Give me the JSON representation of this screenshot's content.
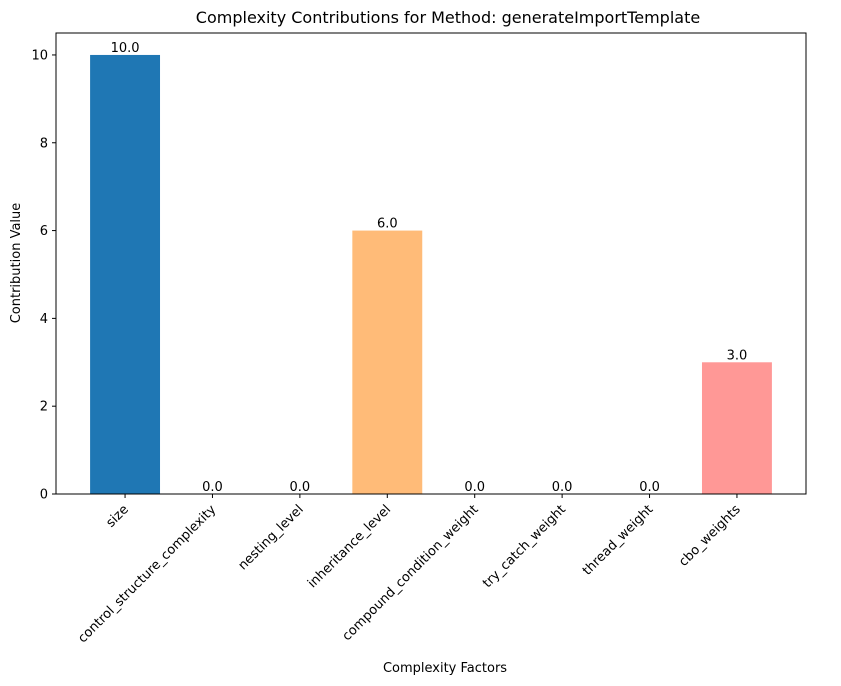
{
  "chart_data": {
    "type": "bar",
    "title": "Complexity Contributions for Method: generateImportTemplate",
    "xlabel": "Complexity Factors",
    "ylabel": "Contribution Value",
    "categories": [
      "size",
      "control_structure_complexity",
      "nesting_level",
      "inheritance_level",
      "compound_condition_weight",
      "try_catch_weight",
      "thread_weight",
      "cbo_weights"
    ],
    "values": [
      10.0,
      0.0,
      0.0,
      6.0,
      0.0,
      0.0,
      0.0,
      3.0
    ],
    "value_labels": [
      "10.0",
      "0.0",
      "0.0",
      "6.0",
      "0.0",
      "0.0",
      "0.0",
      "3.0"
    ],
    "colors": [
      "#1f77b4",
      "#aec7e8",
      "#ff7f0e",
      "#ffbb78",
      "#2ca02c",
      "#98df8a",
      "#d62728",
      "#ff9896"
    ],
    "ylim": [
      0,
      10.5
    ],
    "yticks": [
      0,
      2,
      4,
      6,
      8,
      10
    ],
    "ytick_labels": [
      "0",
      "2",
      "4",
      "6",
      "8",
      "10"
    ],
    "grid": false,
    "legend": "none"
  }
}
